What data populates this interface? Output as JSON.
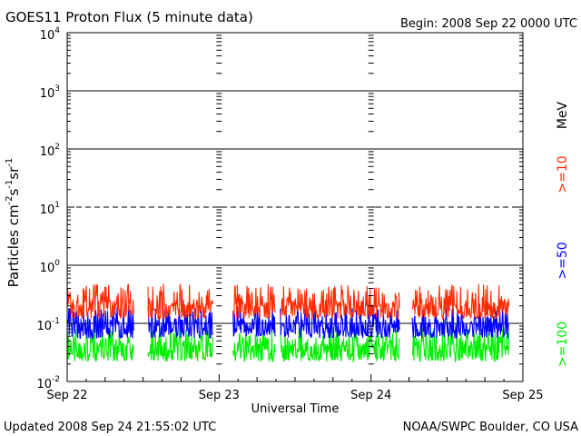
{
  "chart_data": {
    "type": "line",
    "title": "GOES11 Proton Flux (5 minute data)",
    "begin": "Begin: 2008 Sep 22 0000 UTC",
    "xlabel": "Universal Time",
    "ylabel_main": "Particles cm",
    "ylabel_sup1": "-2",
    "ylabel_s": "s",
    "ylabel_sup2": "-1",
    "ylabel_sr": "sr",
    "ylabel_sup3": "-1",
    "unit_label": "MeV",
    "updated": "Updated 2008 Sep 24 21:55:02 UTC",
    "credit": "NOAA/SWPC Boulder, CO USA",
    "x_range_days": [
      0,
      3
    ],
    "x_ticks": [
      {
        "day": 0,
        "label": "Sep 22"
      },
      {
        "day": 1,
        "label": "Sep 23"
      },
      {
        "day": 2,
        "label": "Sep 24"
      },
      {
        "day": 3,
        "label": "Sep 25"
      }
    ],
    "y_scale": "log",
    "ylim_exp": [
      -2,
      4
    ],
    "y_ticks": [
      {
        "exp": 4,
        "base": "10",
        "sup": "4"
      },
      {
        "exp": 3,
        "base": "10",
        "sup": "3"
      },
      {
        "exp": 2,
        "base": "10",
        "sup": "2"
      },
      {
        "exp": 1,
        "base": "10",
        "sup": "1"
      },
      {
        "exp": 0,
        "base": "10",
        "sup": "0"
      },
      {
        "exp": -1,
        "base": "10",
        "sup": "-1"
      },
      {
        "exp": -2,
        "base": "10",
        "sup": "-2"
      }
    ],
    "solid_lines_exp": [
      3,
      2,
      0,
      -1
    ],
    "dashed_lines_exp": [
      1
    ],
    "data_gaps_days": [
      [
        0.44,
        0.53
      ],
      [
        0.96,
        1.09
      ],
      [
        1.37,
        1.4
      ],
      [
        2.19,
        2.27
      ]
    ],
    "data_end_day": 2.91,
    "series": [
      {
        "name": ">=10",
        "color": "#ff2a00",
        "median": 0.2,
        "min": 0.12,
        "max": 0.48
      },
      {
        "name": ">=50",
        "color": "#0000ff",
        "median": 0.095,
        "min": 0.055,
        "max": 0.2
      },
      {
        "name": ">=100",
        "color": "#00ee00",
        "median": 0.04,
        "min": 0.022,
        "max": 0.085
      }
    ]
  }
}
